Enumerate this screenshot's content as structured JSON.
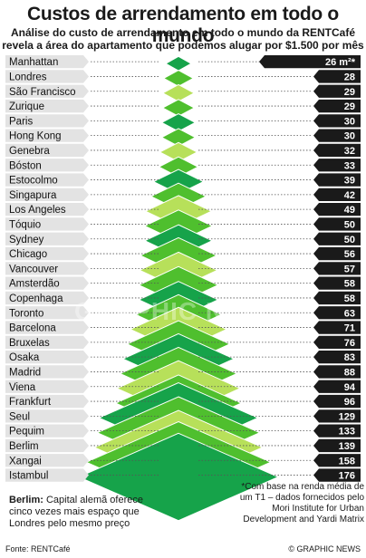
{
  "title": "Custos de arrendamento em todo o mundo",
  "subtitle_line1": "Análise do custo de arrendamento em todo o mundo da RENTCafé",
  "subtitle_line2": "revela a área do apartamento que podemos alugar por $1.500 por mês",
  "note_left": {
    "bold": "Berlim:",
    "text": " Capital alemã oferece cinco vezes mais espaço que Londres pelo mesmo preço"
  },
  "note_right": "*Com base na renda média de um T1 – dados fornecidos pelo Mori Institute for Urban Development and Yardi Matrix",
  "source": "Fonte: RENTCafé",
  "credit": "© GRAPHIC NEWS",
  "watermark": "GRAPHIC NEWS",
  "colors": {
    "dark_green": "#16a34a",
    "mid_green": "#4fbf2e",
    "light_green": "#b7e05a",
    "label_band": "#e3e3e3",
    "value_box": "#1a1a1a"
  },
  "chart_data": {
    "type": "bar",
    "unit_label": "m²*",
    "categories": [
      "Manhattan",
      "Londres",
      "São Francisco",
      "Zurique",
      "Paris",
      "Hong Kong",
      "Genebra",
      "Bóston",
      "Estocolmo",
      "Singapura",
      "Los Angeles",
      "Tóquio",
      "Sydney",
      "Chicago",
      "Vancouver",
      "Amsterdão",
      "Copenhaga",
      "Toronto",
      "Barcelona",
      "Bruxelas",
      "Osaka",
      "Madrid",
      "Viena",
      "Frankfurt",
      "Seul",
      "Pequim",
      "Berlim",
      "Xangai",
      "Istambul"
    ],
    "value_labels": [
      "26 m²*",
      "28",
      "29",
      "29",
      "30",
      "30",
      "32",
      "33",
      "39",
      "42",
      "49",
      "50",
      "50",
      "56",
      "57",
      "58",
      "58",
      "63",
      "71",
      "76",
      "83",
      "88",
      "94",
      "96",
      "129",
      "133",
      "139",
      "158",
      "176"
    ],
    "values": [
      26,
      28,
      29,
      29,
      30,
      30,
      32,
      33,
      39,
      42,
      49,
      50,
      50,
      56,
      57,
      58,
      58,
      63,
      71,
      76,
      83,
      88,
      94,
      96,
      129,
      133,
      139,
      158,
      176
    ]
  }
}
